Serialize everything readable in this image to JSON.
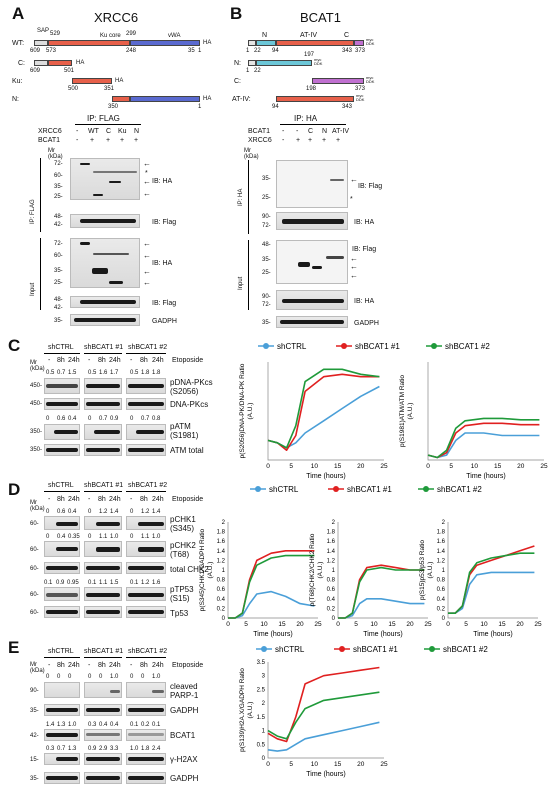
{
  "panels": {
    "a": "A",
    "b": "B",
    "c": "C",
    "d": "D",
    "e": "E"
  },
  "panel_a": {
    "title": "XRCC6",
    "constructs": [
      {
        "name": "WT:",
        "domains": [
          "SAP",
          "Ku core",
          "vWA",
          "HA"
        ],
        "nums": [
          "609",
          "529",
          "573",
          "299",
          "248",
          "35",
          "1"
        ]
      },
      {
        "name": "C:",
        "nums": [
          "609",
          "501"
        ],
        "tag": "HA"
      },
      {
        "name": "Ku:",
        "nums": [
          "500",
          "351"
        ],
        "tag": "HA"
      },
      {
        "name": "N:",
        "nums": [
          "350",
          "1"
        ],
        "tag": "HA"
      }
    ],
    "ip_title": "IP: FLAG",
    "rows": [
      {
        "label": "XRCC6",
        "vals": [
          "-",
          "WT",
          "C",
          "Ku",
          "N"
        ]
      },
      {
        "label": "BCAT1",
        "vals": [
          "-",
          "+",
          "+",
          "+",
          "+"
        ]
      }
    ],
    "mr": "Mr\n(kDa)",
    "ip_label": "IP: FLAG",
    "input_label": "Input",
    "markers_ip_ha": [
      "72-",
      "60-",
      "35-",
      "25-"
    ],
    "markers_ip_flag": [
      "48-",
      "42-"
    ],
    "markers_in_ha": [
      "72-",
      "60-",
      "35-",
      "25-"
    ],
    "markers_in_flag": [
      "48-",
      "42-"
    ],
    "markers_gadph": [
      "35-"
    ],
    "ib": [
      "IB: HA",
      "IB: Flag",
      "IB: HA",
      "IB: Flag",
      "GADPH"
    ],
    "star": "*"
  },
  "panel_b": {
    "title": "BCAT1",
    "top_labels": [
      "N",
      "AT-IV",
      "C"
    ],
    "constructs": [
      {
        "name": "",
        "nums": [
          "1",
          "22",
          "94",
          "343",
          "373"
        ],
        "tag": "myc\nDDK"
      },
      {
        "name": "N:",
        "nums": [
          "1",
          "22",
          "197"
        ],
        "tag": "myc\nDDK"
      },
      {
        "name": "C:",
        "nums": [
          "198",
          "373"
        ],
        "tag": "myc\nDDK"
      },
      {
        "name": "AT-IV:",
        "nums": [
          "94",
          "343"
        ],
        "tag": "myc\nDDK"
      }
    ],
    "ip_title": "IP: HA",
    "rows": [
      {
        "label": "BCAT1",
        "vals": [
          "-",
          "-",
          "C",
          "N",
          "AT-IV"
        ]
      },
      {
        "label": "XRCC6",
        "vals": [
          "-",
          "+",
          "+",
          "+",
          "+"
        ]
      }
    ],
    "mr": "Mr\n(kDa)",
    "ip_label": "IP: HA",
    "input_label": "Input",
    "markers_ip_flag": [
      "35-",
      "25-"
    ],
    "markers_ip_ha": [
      "90-",
      "72-"
    ],
    "markers_in_flag": [
      "48-",
      "35-",
      "25-"
    ],
    "markers_in_ha": [
      "90-",
      "72-"
    ],
    "markers_gadph": [
      "35-"
    ],
    "ib": [
      "IB: Flag",
      "IB: HA",
      "IB: Flag",
      "IB: HA",
      "GADPH"
    ],
    "star": "*"
  },
  "panel_c": {
    "groups": [
      "shCTRL",
      "shBCAT1 #1",
      "shBCAT1 #2"
    ],
    "times": [
      "-",
      "8h",
      "24h"
    ],
    "etoposide": "Etoposide",
    "mr": "Mr\n(kDa)",
    "quant1": [
      "0.5",
      "0.7",
      "1.5",
      "0.5",
      "1.6",
      "1.7",
      "0.5",
      "1.8",
      "1.8"
    ],
    "quant2": [
      "0",
      "0.6",
      "0.4",
      "0",
      "0.7",
      "0.9",
      "0",
      "0.7",
      "0.8"
    ],
    "labels": [
      "pDNA-PKcs\n(S2056)",
      "DNA-PKcs",
      "pATM\n(S1981)",
      "ATM total"
    ],
    "markers": [
      "450-",
      "450-",
      "350-",
      "350-"
    ]
  },
  "panel_d": {
    "groups": [
      "shCTRL",
      "shBCAT1 #1",
      "shBCAT1 #2"
    ],
    "times": [
      "-",
      "8h",
      "24h"
    ],
    "etoposide": "Etoposide",
    "mr": "Mr\n(kDa)",
    "q1": [
      "0",
      "0.6",
      "0.4",
      "0",
      "1.2",
      "1.4",
      "0",
      "1.2",
      "1.4"
    ],
    "q2": [
      "0",
      "0.4",
      "0.35",
      "0",
      "1.1",
      "1.0",
      "0",
      "1.1",
      "1.0"
    ],
    "q3": [
      "0.1",
      "0.9",
      "0.95",
      "0.1",
      "1.1",
      "1.5",
      "0.1",
      "1.2",
      "1.6"
    ],
    "labels": [
      "pCHK1\n(S345)",
      "pCHK2\n(T68)",
      "total CHK2",
      "pTP53\n(S15)",
      "Tp53"
    ],
    "markers": [
      "60-",
      "60-",
      "60-",
      "60-",
      "60-"
    ]
  },
  "panel_e": {
    "groups": [
      "shCTRL",
      "shBCAT1 #1",
      "shBCAT1 #2"
    ],
    "times": [
      "-",
      "8h",
      "24h"
    ],
    "etoposide": "Etoposide",
    "mr": "Mr\n(kDa)",
    "q1": [
      "0",
      "0",
      "0",
      "0",
      "0",
      "1.0",
      "0",
      "0",
      "1.0"
    ],
    "q2": [
      "1.4",
      "1.3",
      "1.0",
      "0.3",
      "0.4",
      "0.4",
      "0.1",
      "0.2",
      "0.1"
    ],
    "q3": [
      "0.3",
      "0.7",
      "1.3",
      "0.9",
      "2.9",
      "3.3",
      "1.0",
      "1.8",
      "2.4"
    ],
    "labels": [
      "cleaved\nPARP-1",
      "GADPH",
      "BCAT1",
      "γ-H2AX",
      "GADPH"
    ],
    "markers": [
      "90-",
      "35-",
      "42-",
      "15-",
      "35-"
    ]
  },
  "legend": {
    "items": [
      "shCTRL",
      "shBCAT1 #1",
      "shBCAT1 #2"
    ],
    "colors": [
      "#4a9fd8",
      "#e02020",
      "#1f9a3a"
    ]
  },
  "chart_data": [
    {
      "type": "line",
      "ylabel": "p(S2056)DNA-PK/DNA-PK Ratio\n(A.U.)",
      "xlabel": "Time (hours)",
      "xlim": [
        0,
        25
      ],
      "ylim": [
        0,
        2
      ],
      "yticks": [],
      "xticks": [
        0,
        5,
        10,
        15,
        20,
        25
      ],
      "series": [
        {
          "name": "shCTRL",
          "x": [
            0,
            2,
            4,
            6,
            8,
            12,
            16,
            20,
            24
          ],
          "y": [
            0.4,
            0.35,
            0.25,
            0.35,
            0.55,
            0.8,
            1.05,
            1.3,
            1.5
          ]
        },
        {
          "name": "shBCAT1 #1",
          "x": [
            0,
            2,
            4,
            6,
            8,
            12,
            16,
            20,
            24
          ],
          "y": [
            0.4,
            0.35,
            0.2,
            0.5,
            1.4,
            1.7,
            1.75,
            1.7,
            1.7
          ]
        },
        {
          "name": "shBCAT1 #2",
          "x": [
            0,
            2,
            4,
            6,
            8,
            12,
            16,
            20,
            24
          ],
          "y": [
            0.4,
            0.35,
            0.25,
            0.7,
            1.6,
            1.85,
            1.85,
            1.75,
            1.7
          ]
        }
      ]
    },
    {
      "type": "line",
      "ylabel": "p(S1981)ATM/ATM Ratio\n(A.U.)",
      "xlabel": "Time (hours)",
      "xlim": [
        0,
        25
      ],
      "ylim": [
        0,
        2
      ],
      "yticks": [],
      "xticks": [
        0,
        5,
        10,
        15,
        20,
        25
      ],
      "series": [
        {
          "name": "shCTRL",
          "x": [
            0,
            2,
            4,
            6,
            8,
            12,
            16,
            20,
            24
          ],
          "y": [
            0.1,
            0.05,
            0.1,
            0.4,
            0.55,
            0.55,
            0.5,
            0.5,
            0.5
          ]
        },
        {
          "name": "shBCAT1 #1",
          "x": [
            0,
            2,
            4,
            6,
            8,
            12,
            16,
            20,
            24
          ],
          "y": [
            0.1,
            0.05,
            0.15,
            0.55,
            0.7,
            0.75,
            0.75,
            0.72,
            0.72
          ]
        },
        {
          "name": "shBCAT1 #2",
          "x": [
            0,
            2,
            4,
            6,
            8,
            12,
            16,
            20,
            24
          ],
          "y": [
            0.1,
            0.05,
            0.2,
            0.65,
            0.8,
            0.85,
            0.85,
            0.82,
            0.82
          ]
        }
      ]
    },
    {
      "type": "line",
      "ylabel": "p(S345)CHK1/GADPH Ratio\n(A.U.)",
      "xlabel": "Time (hours)",
      "xlim": [
        0,
        25
      ],
      "ylim": [
        0,
        2
      ],
      "yticks": [
        0,
        0.2,
        0.4,
        0.6,
        0.8,
        1,
        1.2,
        1.4,
        1.6,
        1.8,
        2
      ],
      "xticks": [
        0,
        5,
        10,
        15,
        20,
        25
      ],
      "series": [
        {
          "name": "shCTRL",
          "x": [
            0,
            2,
            4,
            6,
            8,
            12,
            16,
            20,
            24
          ],
          "y": [
            0,
            0,
            0.05,
            0.3,
            0.5,
            0.55,
            0.45,
            0.3,
            0.25
          ]
        },
        {
          "name": "shBCAT1 #1",
          "x": [
            0,
            2,
            4,
            6,
            8,
            12,
            16,
            20,
            24
          ],
          "y": [
            0,
            0,
            0.1,
            0.8,
            1.2,
            1.35,
            1.4,
            1.4,
            1.4
          ]
        },
        {
          "name": "shBCAT1 #2",
          "x": [
            0,
            2,
            4,
            6,
            8,
            12,
            16,
            20,
            24
          ],
          "y": [
            0,
            0,
            0.1,
            0.75,
            1.1,
            1.25,
            1.3,
            1.3,
            1.3
          ]
        }
      ]
    },
    {
      "type": "line",
      "ylabel": "p(T68)CHK2/CHK2 Ratio\n(A.U.)",
      "xlabel": "Time (hours)",
      "xlim": [
        0,
        25
      ],
      "ylim": [
        0,
        2
      ],
      "yticks": [
        0,
        0.2,
        0.4,
        0.6,
        0.8,
        1,
        1.2,
        1.4,
        1.6,
        1.8,
        2
      ],
      "xticks": [
        0,
        5,
        10,
        15,
        20,
        25
      ],
      "series": [
        {
          "name": "shCTRL",
          "x": [
            0,
            2,
            4,
            6,
            8,
            12,
            16,
            20,
            24
          ],
          "y": [
            0,
            0,
            0.05,
            0.3,
            0.4,
            0.4,
            0.35,
            0.3,
            0.3
          ]
        },
        {
          "name": "shBCAT1 #1",
          "x": [
            0,
            2,
            4,
            6,
            8,
            12,
            16,
            20,
            24
          ],
          "y": [
            0,
            0,
            0.1,
            0.8,
            1.05,
            1.1,
            1.05,
            1.0,
            1.0
          ]
        },
        {
          "name": "shBCAT1 #2",
          "x": [
            0,
            2,
            4,
            6,
            8,
            12,
            16,
            20,
            24
          ],
          "y": [
            0,
            0,
            0.1,
            0.75,
            1.0,
            1.05,
            1.0,
            1.0,
            1.0
          ]
        }
      ]
    },
    {
      "type": "line",
      "ylabel": "p(S15)p53/p53 Ratio\n(A.U.)",
      "xlabel": "Time (hours)",
      "xlim": [
        0,
        25
      ],
      "ylim": [
        0,
        2
      ],
      "yticks": [
        0,
        0.2,
        0.4,
        0.6,
        0.8,
        1,
        1.2,
        1.4,
        1.6,
        1.8,
        2
      ],
      "xticks": [
        0,
        5,
        10,
        15,
        20,
        25
      ],
      "series": [
        {
          "name": "shCTRL",
          "x": [
            0,
            2,
            4,
            6,
            8,
            12,
            16,
            20,
            24
          ],
          "y": [
            0.1,
            0.1,
            0.2,
            0.7,
            0.9,
            0.95,
            0.95,
            0.95,
            0.95
          ]
        },
        {
          "name": "shBCAT1 #1",
          "x": [
            0,
            2,
            4,
            6,
            8,
            12,
            16,
            20,
            24
          ],
          "y": [
            0.1,
            0.1,
            0.25,
            0.9,
            1.1,
            1.2,
            1.3,
            1.4,
            1.5
          ]
        },
        {
          "name": "shBCAT1 #2",
          "x": [
            0,
            2,
            4,
            6,
            8,
            12,
            16,
            20,
            24
          ],
          "y": [
            0.1,
            0.1,
            0.25,
            0.95,
            1.15,
            1.25,
            1.3,
            1.35,
            1.35
          ]
        }
      ]
    },
    {
      "type": "line",
      "ylabel": "p(S139)H2A.X/GADPH Ratio\n(A.U.)",
      "xlabel": "Time (hours)",
      "xlim": [
        0,
        25
      ],
      "ylim": [
        0,
        3.5
      ],
      "yticks": [
        0,
        0.5,
        1,
        1.5,
        2,
        2.5,
        3,
        3.5
      ],
      "xticks": [
        0,
        5,
        10,
        15,
        20,
        25
      ],
      "series": [
        {
          "name": "shCTRL",
          "x": [
            0,
            2,
            4,
            6,
            8,
            12,
            16,
            20,
            24
          ],
          "y": [
            0.3,
            0.25,
            0.3,
            0.5,
            0.7,
            0.85,
            1.0,
            1.15,
            1.3
          ]
        },
        {
          "name": "shBCAT1 #1",
          "x": [
            0,
            2,
            4,
            6,
            8,
            12,
            16,
            20,
            24
          ],
          "y": [
            0.9,
            0.7,
            0.6,
            1.5,
            2.7,
            3.0,
            3.1,
            3.2,
            3.3
          ]
        },
        {
          "name": "shBCAT1 #2",
          "x": [
            0,
            2,
            4,
            6,
            8,
            12,
            16,
            20,
            24
          ],
          "y": [
            1.0,
            0.8,
            0.7,
            1.3,
            1.8,
            2.1,
            2.2,
            2.3,
            2.4
          ]
        }
      ]
    }
  ]
}
